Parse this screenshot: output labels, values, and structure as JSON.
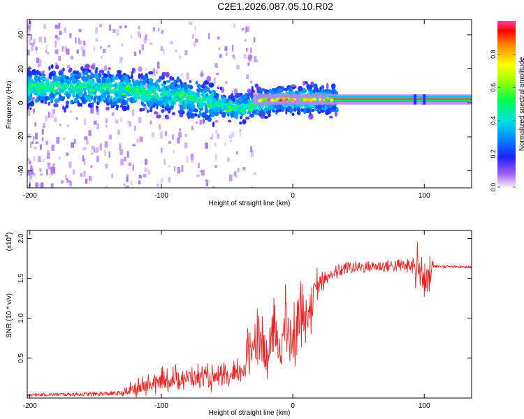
{
  "title": "C2E1.2026.087.05.10.R02",
  "chart_data": [
    {
      "type": "heatmap",
      "name": "spectrogram",
      "xlabel": "Height of straight line (km)",
      "ylabel": "Frequency (Hz)",
      "xlim": [
        -202,
        136
      ],
      "ylim": [
        -50,
        49
      ],
      "x_ticks": [
        -200,
        -100,
        0,
        100
      ],
      "x_tick_labels": [
        "-200",
        "-100",
        "0",
        "100"
      ],
      "y_ticks": [
        -40,
        -20,
        0,
        20,
        40
      ],
      "y_tick_labels": [
        "-40",
        "-20",
        "0",
        "20",
        "40"
      ],
      "ridge_frequency_hz": [
        [
          -200,
          9
        ],
        [
          -180,
          9
        ],
        [
          -160,
          9
        ],
        [
          -140,
          8
        ],
        [
          -120,
          7
        ],
        [
          -100,
          5
        ],
        [
          -80,
          3
        ],
        [
          -60,
          0
        ],
        [
          -45,
          -3
        ],
        [
          -38,
          -3
        ],
        [
          -30,
          -1
        ],
        [
          -20,
          1
        ],
        [
          -10,
          2
        ],
        [
          0,
          2
        ],
        [
          20,
          2
        ],
        [
          60,
          2
        ],
        [
          100,
          2
        ],
        [
          136,
          2
        ]
      ],
      "colorbar": {
        "label": "Normalized spectral amplitude",
        "range": [
          0,
          1
        ],
        "ticks": [
          0.0,
          0.2,
          0.4,
          0.6,
          0.8
        ],
        "tick_labels": [
          "0.0",
          "0.2",
          "0.4",
          "0.6",
          "0.8"
        ]
      }
    },
    {
      "type": "line",
      "name": "snr",
      "xlabel": "Height of straight line (km)",
      "ylabel": "SNR (10 * v/v)",
      "scale_label": "(x10",
      "scale_exponent": "4",
      "xlim": [
        -202,
        136
      ],
      "ylim": [
        0,
        21000
      ],
      "x_ticks": [
        -200,
        -100,
        0,
        100
      ],
      "x_tick_labels": [
        "-200",
        "-100",
        "0",
        "100"
      ],
      "y_ticks": [
        5000,
        10000,
        15000,
        20000
      ],
      "y_tick_labels": [
        "0.5",
        "1.0",
        "1.5",
        "2.0"
      ],
      "color": "#ee2222",
      "trend": [
        [
          -202,
          400
        ],
        [
          -150,
          500
        ],
        [
          -130,
          600
        ],
        [
          -120,
          1000
        ],
        [
          -100,
          2000
        ],
        [
          -80,
          2500
        ],
        [
          -60,
          2300
        ],
        [
          -45,
          2400
        ],
        [
          -35,
          4000
        ],
        [
          -30,
          7000
        ],
        [
          -25,
          8000
        ],
        [
          -20,
          4000
        ],
        [
          -15,
          8000
        ],
        [
          -10,
          6000
        ],
        [
          -5,
          9000
        ],
        [
          0,
          6000
        ],
        [
          5,
          11000
        ],
        [
          10,
          10000
        ],
        [
          15,
          12000
        ],
        [
          20,
          14000
        ],
        [
          30,
          15500
        ],
        [
          40,
          16300
        ],
        [
          60,
          16500
        ],
        [
          80,
          16600
        ],
        [
          90,
          16600
        ],
        [
          95,
          16000
        ],
        [
          100,
          15000
        ],
        [
          103,
          13500
        ],
        [
          106,
          16500
        ],
        [
          136,
          16400
        ]
      ],
      "noise_amplitude": [
        [
          -202,
          150
        ],
        [
          -130,
          300
        ],
        [
          -120,
          1500
        ],
        [
          -100,
          1800
        ],
        [
          -80,
          2000
        ],
        [
          -60,
          1800
        ],
        [
          -40,
          2200
        ],
        [
          -30,
          5500
        ],
        [
          -20,
          5000
        ],
        [
          0,
          5500
        ],
        [
          15,
          4000
        ],
        [
          25,
          1200
        ],
        [
          40,
          800
        ],
        [
          60,
          700
        ],
        [
          85,
          900
        ],
        [
          95,
          3500
        ],
        [
          103,
          4500
        ],
        [
          108,
          200
        ],
        [
          136,
          120
        ]
      ]
    }
  ]
}
